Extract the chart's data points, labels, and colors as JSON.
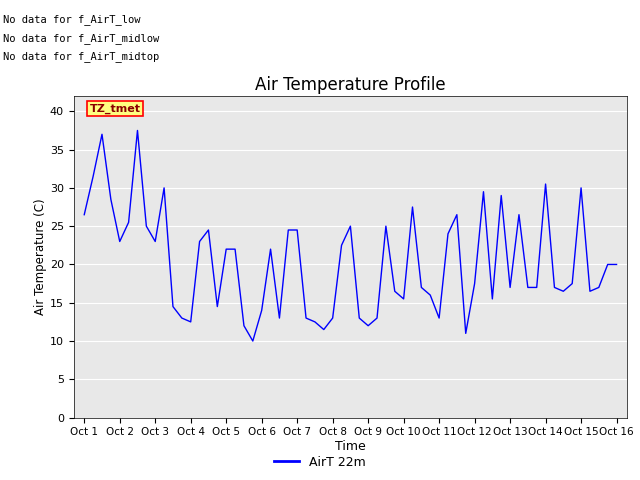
{
  "title": "Air Temperature Profile",
  "xlabel": "Time",
  "ylabel": "Air Temperature (C)",
  "background_color": "#e8e8e8",
  "line_color": "#0000ff",
  "ylim": [
    0,
    42
  ],
  "yticks": [
    0,
    5,
    10,
    15,
    20,
    25,
    30,
    35,
    40
  ],
  "x_labels": [
    "Oct 1",
    "Oct 2",
    "Oct 3",
    "Oct 4",
    "Oct 5",
    "Oct 6",
    "Oct 7",
    "Oct 8",
    "Oct 9",
    "Oct 10",
    "Oct 11",
    "Oct 12",
    "Oct 13",
    "Oct 14",
    "Oct 15",
    "Oct 16"
  ],
  "annotations": [
    "No data for f_AirT_low",
    "No data for f_AirT_midlow",
    "No data for f_AirT_midtop"
  ],
  "tz_label": "TZ_tmet",
  "legend_label": "AirT 22m",
  "data_x": [
    0,
    0.25,
    0.5,
    0.75,
    1.0,
    1.25,
    1.5,
    1.75,
    2.0,
    2.25,
    2.5,
    2.75,
    3.0,
    3.25,
    3.5,
    3.75,
    4.0,
    4.25,
    4.5,
    4.75,
    5.0,
    5.25,
    5.5,
    5.75,
    6.0,
    6.25,
    6.5,
    6.75,
    7.0,
    7.25,
    7.5,
    7.75,
    8.0,
    8.25,
    8.5,
    8.75,
    9.0,
    9.25,
    9.5,
    9.75,
    10.0,
    10.25,
    10.5,
    10.75,
    11.0,
    11.25,
    11.5,
    11.75,
    12.0,
    12.25,
    12.5,
    12.75,
    13.0,
    13.25,
    13.5,
    13.75,
    14.0,
    14.25,
    14.5,
    14.75,
    15.0
  ],
  "data_y": [
    26.5,
    31.5,
    37.0,
    28.5,
    23.0,
    25.5,
    37.5,
    25.0,
    23.0,
    30.0,
    14.5,
    13.0,
    12.5,
    23.0,
    24.5,
    14.5,
    22.0,
    22.0,
    12.0,
    10.0,
    14.0,
    22.0,
    13.0,
    24.5,
    24.5,
    13.0,
    12.5,
    11.5,
    13.0,
    22.5,
    25.0,
    13.0,
    12.0,
    13.0,
    25.0,
    16.5,
    15.5,
    27.5,
    17.0,
    16.0,
    13.0,
    24.0,
    26.5,
    11.0,
    17.5,
    29.5,
    15.5,
    29.0,
    17.0,
    26.5,
    17.0,
    17.0,
    30.5,
    17.0,
    16.5,
    17.5,
    30.0,
    16.5,
    17.0,
    20.0,
    20.0
  ]
}
